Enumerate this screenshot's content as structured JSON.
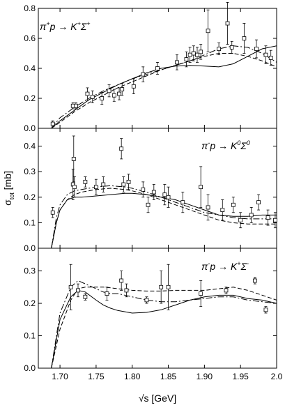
{
  "figure": {
    "xlabel": "√s [GeV]",
    "ylabel_main": "σ",
    "ylabel_sub": "tot",
    "ylabel_unit": " [mb]"
  },
  "chart_data": [
    {
      "type": "scatter",
      "reaction": {
        "parts": [
          {
            "t": "π",
            "k": "n"
          },
          {
            "t": "+",
            "k": "sup"
          },
          {
            "t": "p → K",
            "k": "n"
          },
          {
            "t": "+",
            "k": "sup"
          },
          {
            "t": "Σ",
            "k": "n"
          },
          {
            "t": "+",
            "k": "sup"
          }
        ]
      },
      "xlim": [
        1.67,
        2.0
      ],
      "ylim": [
        0.0,
        0.8
      ],
      "yticks": [
        0.0,
        0.2,
        0.4,
        0.6,
        0.8
      ],
      "ytick_labels": [
        "0.0",
        "0.2",
        "0.4",
        "0.6",
        "0.8"
      ],
      "series": [
        {
          "style": "solid",
          "x": [
            1.688,
            1.7,
            1.72,
            1.74,
            1.76,
            1.78,
            1.8,
            1.82,
            1.84,
            1.86,
            1.88,
            1.9,
            1.92,
            1.94,
            1.96,
            1.98,
            2.0
          ],
          "y": [
            0.0,
            0.05,
            0.12,
            0.19,
            0.24,
            0.29,
            0.33,
            0.37,
            0.4,
            0.415,
            0.42,
            0.415,
            0.41,
            0.43,
            0.48,
            0.53,
            0.55
          ]
        },
        {
          "style": "dashed",
          "x": [
            1.688,
            1.7,
            1.72,
            1.74,
            1.76,
            1.78,
            1.8,
            1.82,
            1.84,
            1.86,
            1.88,
            1.9,
            1.92,
            1.94,
            1.96,
            1.98,
            2.0
          ],
          "y": [
            0.0,
            0.04,
            0.11,
            0.17,
            0.22,
            0.27,
            0.31,
            0.35,
            0.39,
            0.42,
            0.45,
            0.48,
            0.5,
            0.5,
            0.48,
            0.45,
            0.41
          ]
        },
        {
          "style": "dashdot",
          "x": [
            1.688,
            1.7,
            1.72,
            1.74,
            1.76,
            1.78,
            1.8,
            1.82,
            1.84,
            1.86,
            1.88,
            1.9,
            1.92,
            1.94,
            1.96,
            1.98,
            2.0
          ],
          "y": [
            0.0,
            0.07,
            0.14,
            0.2,
            0.25,
            0.29,
            0.33,
            0.36,
            0.39,
            0.42,
            0.45,
            0.49,
            0.53,
            0.55,
            0.54,
            0.5,
            0.44
          ]
        }
      ],
      "points": [
        {
          "x": 1.69,
          "y": 0.03,
          "err": 0.02
        },
        {
          "x": 1.718,
          "y": 0.15,
          "err": 0.02
        },
        {
          "x": 1.722,
          "y": 0.15,
          "err": 0.02
        },
        {
          "x": 1.738,
          "y": 0.23,
          "err": 0.04
        },
        {
          "x": 1.745,
          "y": 0.21,
          "err": 0.04
        },
        {
          "x": 1.758,
          "y": 0.2,
          "err": 0.04
        },
        {
          "x": 1.768,
          "y": 0.25,
          "err": 0.04
        },
        {
          "x": 1.775,
          "y": 0.22,
          "err": 0.04
        },
        {
          "x": 1.782,
          "y": 0.23,
          "err": 0.04
        },
        {
          "x": 1.786,
          "y": 0.26,
          "err": 0.04
        },
        {
          "x": 1.802,
          "y": 0.28,
          "err": 0.05
        },
        {
          "x": 1.815,
          "y": 0.36,
          "err": 0.05
        },
        {
          "x": 1.835,
          "y": 0.4,
          "err": 0.04
        },
        {
          "x": 1.862,
          "y": 0.44,
          "err": 0.05
        },
        {
          "x": 1.875,
          "y": 0.46,
          "err": 0.05
        },
        {
          "x": 1.88,
          "y": 0.49,
          "err": 0.05
        },
        {
          "x": 1.885,
          "y": 0.5,
          "err": 0.05
        },
        {
          "x": 1.89,
          "y": 0.49,
          "err": 0.05
        },
        {
          "x": 1.895,
          "y": 0.51,
          "err": 0.05
        },
        {
          "x": 1.905,
          "y": 0.65,
          "err": 0.14
        },
        {
          "x": 1.92,
          "y": 0.53,
          "err": 0.04
        },
        {
          "x": 1.932,
          "y": 0.7,
          "err": 0.14
        },
        {
          "x": 1.938,
          "y": 0.54,
          "err": 0.04
        },
        {
          "x": 1.955,
          "y": 0.6,
          "err": 0.1
        },
        {
          "x": 1.972,
          "y": 0.53,
          "err": 0.06
        },
        {
          "x": 1.985,
          "y": 0.49,
          "err": 0.06
        },
        {
          "x": 1.992,
          "y": 0.47,
          "err": 0.05
        }
      ]
    },
    {
      "type": "scatter",
      "reaction": {
        "parts": [
          {
            "t": "π",
            "k": "n"
          },
          {
            "t": "-",
            "k": "sup"
          },
          {
            "t": "p → K",
            "k": "n"
          },
          {
            "t": "0",
            "k": "sup"
          },
          {
            "t": "Σ",
            "k": "n"
          },
          {
            "t": "0",
            "k": "sup"
          }
        ]
      },
      "xlim": [
        1.67,
        2.0
      ],
      "ylim": [
        0.0,
        0.47
      ],
      "yticks": [
        0.0,
        0.1,
        0.2,
        0.3,
        0.4
      ],
      "ytick_labels": [
        "0.0",
        "0.1",
        "0.2",
        "0.3",
        "0.4"
      ],
      "series": [
        {
          "style": "solid",
          "x": [
            1.688,
            1.695,
            1.7,
            1.71,
            1.72,
            1.73,
            1.75,
            1.77,
            1.79,
            1.8,
            1.82,
            1.84,
            1.86,
            1.88,
            1.9,
            1.92,
            1.94,
            1.96,
            1.98,
            2.0
          ],
          "y": [
            0.0,
            0.1,
            0.15,
            0.19,
            0.2,
            0.2,
            0.205,
            0.21,
            0.215,
            0.215,
            0.21,
            0.2,
            0.19,
            0.17,
            0.15,
            0.13,
            0.125,
            0.125,
            0.13,
            0.13
          ]
        },
        {
          "style": "dashed",
          "x": [
            1.688,
            1.695,
            1.7,
            1.71,
            1.72,
            1.73,
            1.75,
            1.77,
            1.79,
            1.8,
            1.82,
            1.84,
            1.86,
            1.88,
            1.9,
            1.92,
            1.94,
            1.96,
            1.98,
            2.0
          ],
          "y": [
            0.0,
            0.1,
            0.15,
            0.19,
            0.21,
            0.22,
            0.23,
            0.235,
            0.23,
            0.225,
            0.21,
            0.19,
            0.17,
            0.15,
            0.13,
            0.11,
            0.1,
            0.095,
            0.095,
            0.095
          ]
        },
        {
          "style": "dashdot",
          "x": [
            1.688,
            1.695,
            1.7,
            1.71,
            1.72,
            1.73,
            1.75,
            1.77,
            1.79,
            1.8,
            1.82,
            1.84,
            1.86,
            1.88,
            1.9,
            1.92,
            1.94,
            1.96,
            1.98,
            2.0
          ],
          "y": [
            0.0,
            0.12,
            0.17,
            0.21,
            0.225,
            0.23,
            0.24,
            0.245,
            0.24,
            0.235,
            0.22,
            0.2,
            0.18,
            0.16,
            0.14,
            0.13,
            0.12,
            0.115,
            0.115,
            0.115
          ]
        }
      ],
      "points": [
        {
          "x": 1.69,
          "y": 0.14,
          "err": 0.02
        },
        {
          "x": 1.718,
          "y": 0.25,
          "err": 0.06
        },
        {
          "x": 1.719,
          "y": 0.35,
          "err": 0.09
        },
        {
          "x": 1.72,
          "y": 0.24,
          "err": 0.04
        },
        {
          "x": 1.735,
          "y": 0.26,
          "err": 0.02
        },
        {
          "x": 1.75,
          "y": 0.24,
          "err": 0.03
        },
        {
          "x": 1.76,
          "y": 0.25,
          "err": 0.03
        },
        {
          "x": 1.785,
          "y": 0.39,
          "err": 0.04
        },
        {
          "x": 1.788,
          "y": 0.25,
          "err": 0.03
        },
        {
          "x": 1.795,
          "y": 0.26,
          "err": 0.03
        },
        {
          "x": 1.815,
          "y": 0.23,
          "err": 0.03
        },
        {
          "x": 1.822,
          "y": 0.17,
          "err": 0.03
        },
        {
          "x": 1.83,
          "y": 0.22,
          "err": 0.03
        },
        {
          "x": 1.845,
          "y": 0.21,
          "err": 0.04
        },
        {
          "x": 1.85,
          "y": 0.2,
          "err": 0.04
        },
        {
          "x": 1.87,
          "y": 0.18,
          "err": 0.04
        },
        {
          "x": 1.895,
          "y": 0.24,
          "err": 0.08
        },
        {
          "x": 1.905,
          "y": 0.16,
          "err": 0.05
        },
        {
          "x": 1.925,
          "y": 0.15,
          "err": 0.04
        },
        {
          "x": 1.94,
          "y": 0.17,
          "err": 0.03
        },
        {
          "x": 1.95,
          "y": 0.11,
          "err": 0.03
        },
        {
          "x": 1.965,
          "y": 0.13,
          "err": 0.03
        },
        {
          "x": 1.975,
          "y": 0.18,
          "err": 0.03
        },
        {
          "x": 1.988,
          "y": 0.12,
          "err": 0.03
        },
        {
          "x": 1.998,
          "y": 0.11,
          "err": 0.03
        }
      ]
    },
    {
      "type": "scatter",
      "reaction": {
        "parts": [
          {
            "t": "π",
            "k": "n"
          },
          {
            "t": "-",
            "k": "sup"
          },
          {
            "t": "p → K",
            "k": "n"
          },
          {
            "t": "+",
            "k": "sup"
          },
          {
            "t": "Σ",
            "k": "n"
          },
          {
            "t": "-",
            "k": "sup"
          }
        ]
      },
      "xlim": [
        1.67,
        2.0
      ],
      "ylim": [
        0.0,
        0.37
      ],
      "yticks": [
        0.0,
        0.1,
        0.2,
        0.3
      ],
      "ytick_labels": [
        "0.0",
        "0.1",
        "0.2",
        "0.3"
      ],
      "xticks": [
        1.7,
        1.75,
        1.8,
        1.85,
        1.9,
        1.95,
        2.0
      ],
      "xtick_labels": [
        "1.70",
        "1.75",
        "1.80",
        "1.85",
        "1.90",
        "1.95",
        "2.0"
      ],
      "series": [
        {
          "style": "solid",
          "x": [
            1.688,
            1.7,
            1.715,
            1.725,
            1.735,
            1.75,
            1.76,
            1.77,
            1.78,
            1.8,
            1.82,
            1.84,
            1.86,
            1.88,
            1.9,
            1.92,
            1.94,
            1.96,
            1.98,
            2.0
          ],
          "y": [
            0.0,
            0.15,
            0.22,
            0.24,
            0.235,
            0.21,
            0.195,
            0.185,
            0.178,
            0.17,
            0.172,
            0.18,
            0.195,
            0.21,
            0.22,
            0.225,
            0.225,
            0.215,
            0.21,
            0.2
          ]
        },
        {
          "style": "dashed",
          "x": [
            1.688,
            1.7,
            1.715,
            1.725,
            1.735,
            1.75,
            1.76,
            1.77,
            1.78,
            1.8,
            1.82,
            1.84,
            1.86,
            1.88,
            1.9,
            1.92,
            1.94,
            1.96,
            1.98,
            2.0
          ],
          "y": [
            0.0,
            0.12,
            0.21,
            0.245,
            0.25,
            0.25,
            0.25,
            0.248,
            0.245,
            0.24,
            0.238,
            0.238,
            0.24,
            0.24,
            0.24,
            0.245,
            0.25,
            0.24,
            0.225,
            0.21
          ]
        },
        {
          "style": "dashdot",
          "x": [
            1.688,
            1.7,
            1.715,
            1.725,
            1.735,
            1.75,
            1.76,
            1.77,
            1.78,
            1.8,
            1.82,
            1.84,
            1.86,
            1.88,
            1.9,
            1.92,
            1.94,
            1.96,
            1.98,
            2.0
          ],
          "y": [
            0.0,
            0.17,
            0.25,
            0.27,
            0.26,
            0.245,
            0.235,
            0.23,
            0.23,
            0.22,
            0.21,
            0.205,
            0.205,
            0.21,
            0.215,
            0.22,
            0.22,
            0.21,
            0.205,
            0.2
          ]
        }
      ],
      "points": [
        {
          "x": 1.715,
          "y": 0.25,
          "err": 0.07
        },
        {
          "x": 1.725,
          "y": 0.24,
          "err": 0.02
        },
        {
          "x": 1.735,
          "y": 0.22,
          "err": 0.01
        },
        {
          "x": 1.765,
          "y": 0.23,
          "err": 0.02
        },
        {
          "x": 1.785,
          "y": 0.27,
          "err": 0.03
        },
        {
          "x": 1.792,
          "y": 0.24,
          "err": 0.02
        },
        {
          "x": 1.82,
          "y": 0.21,
          "err": 0.01
        },
        {
          "x": 1.84,
          "y": 0.25,
          "err": 0.05
        },
        {
          "x": 1.85,
          "y": 0.25,
          "err": 0.07
        },
        {
          "x": 1.895,
          "y": 0.23,
          "err": 0.04
        },
        {
          "x": 1.93,
          "y": 0.24,
          "err": 0.01
        },
        {
          "x": 1.97,
          "y": 0.27,
          "err": 0.01
        },
        {
          "x": 1.985,
          "y": 0.18,
          "err": 0.01
        }
      ]
    }
  ]
}
